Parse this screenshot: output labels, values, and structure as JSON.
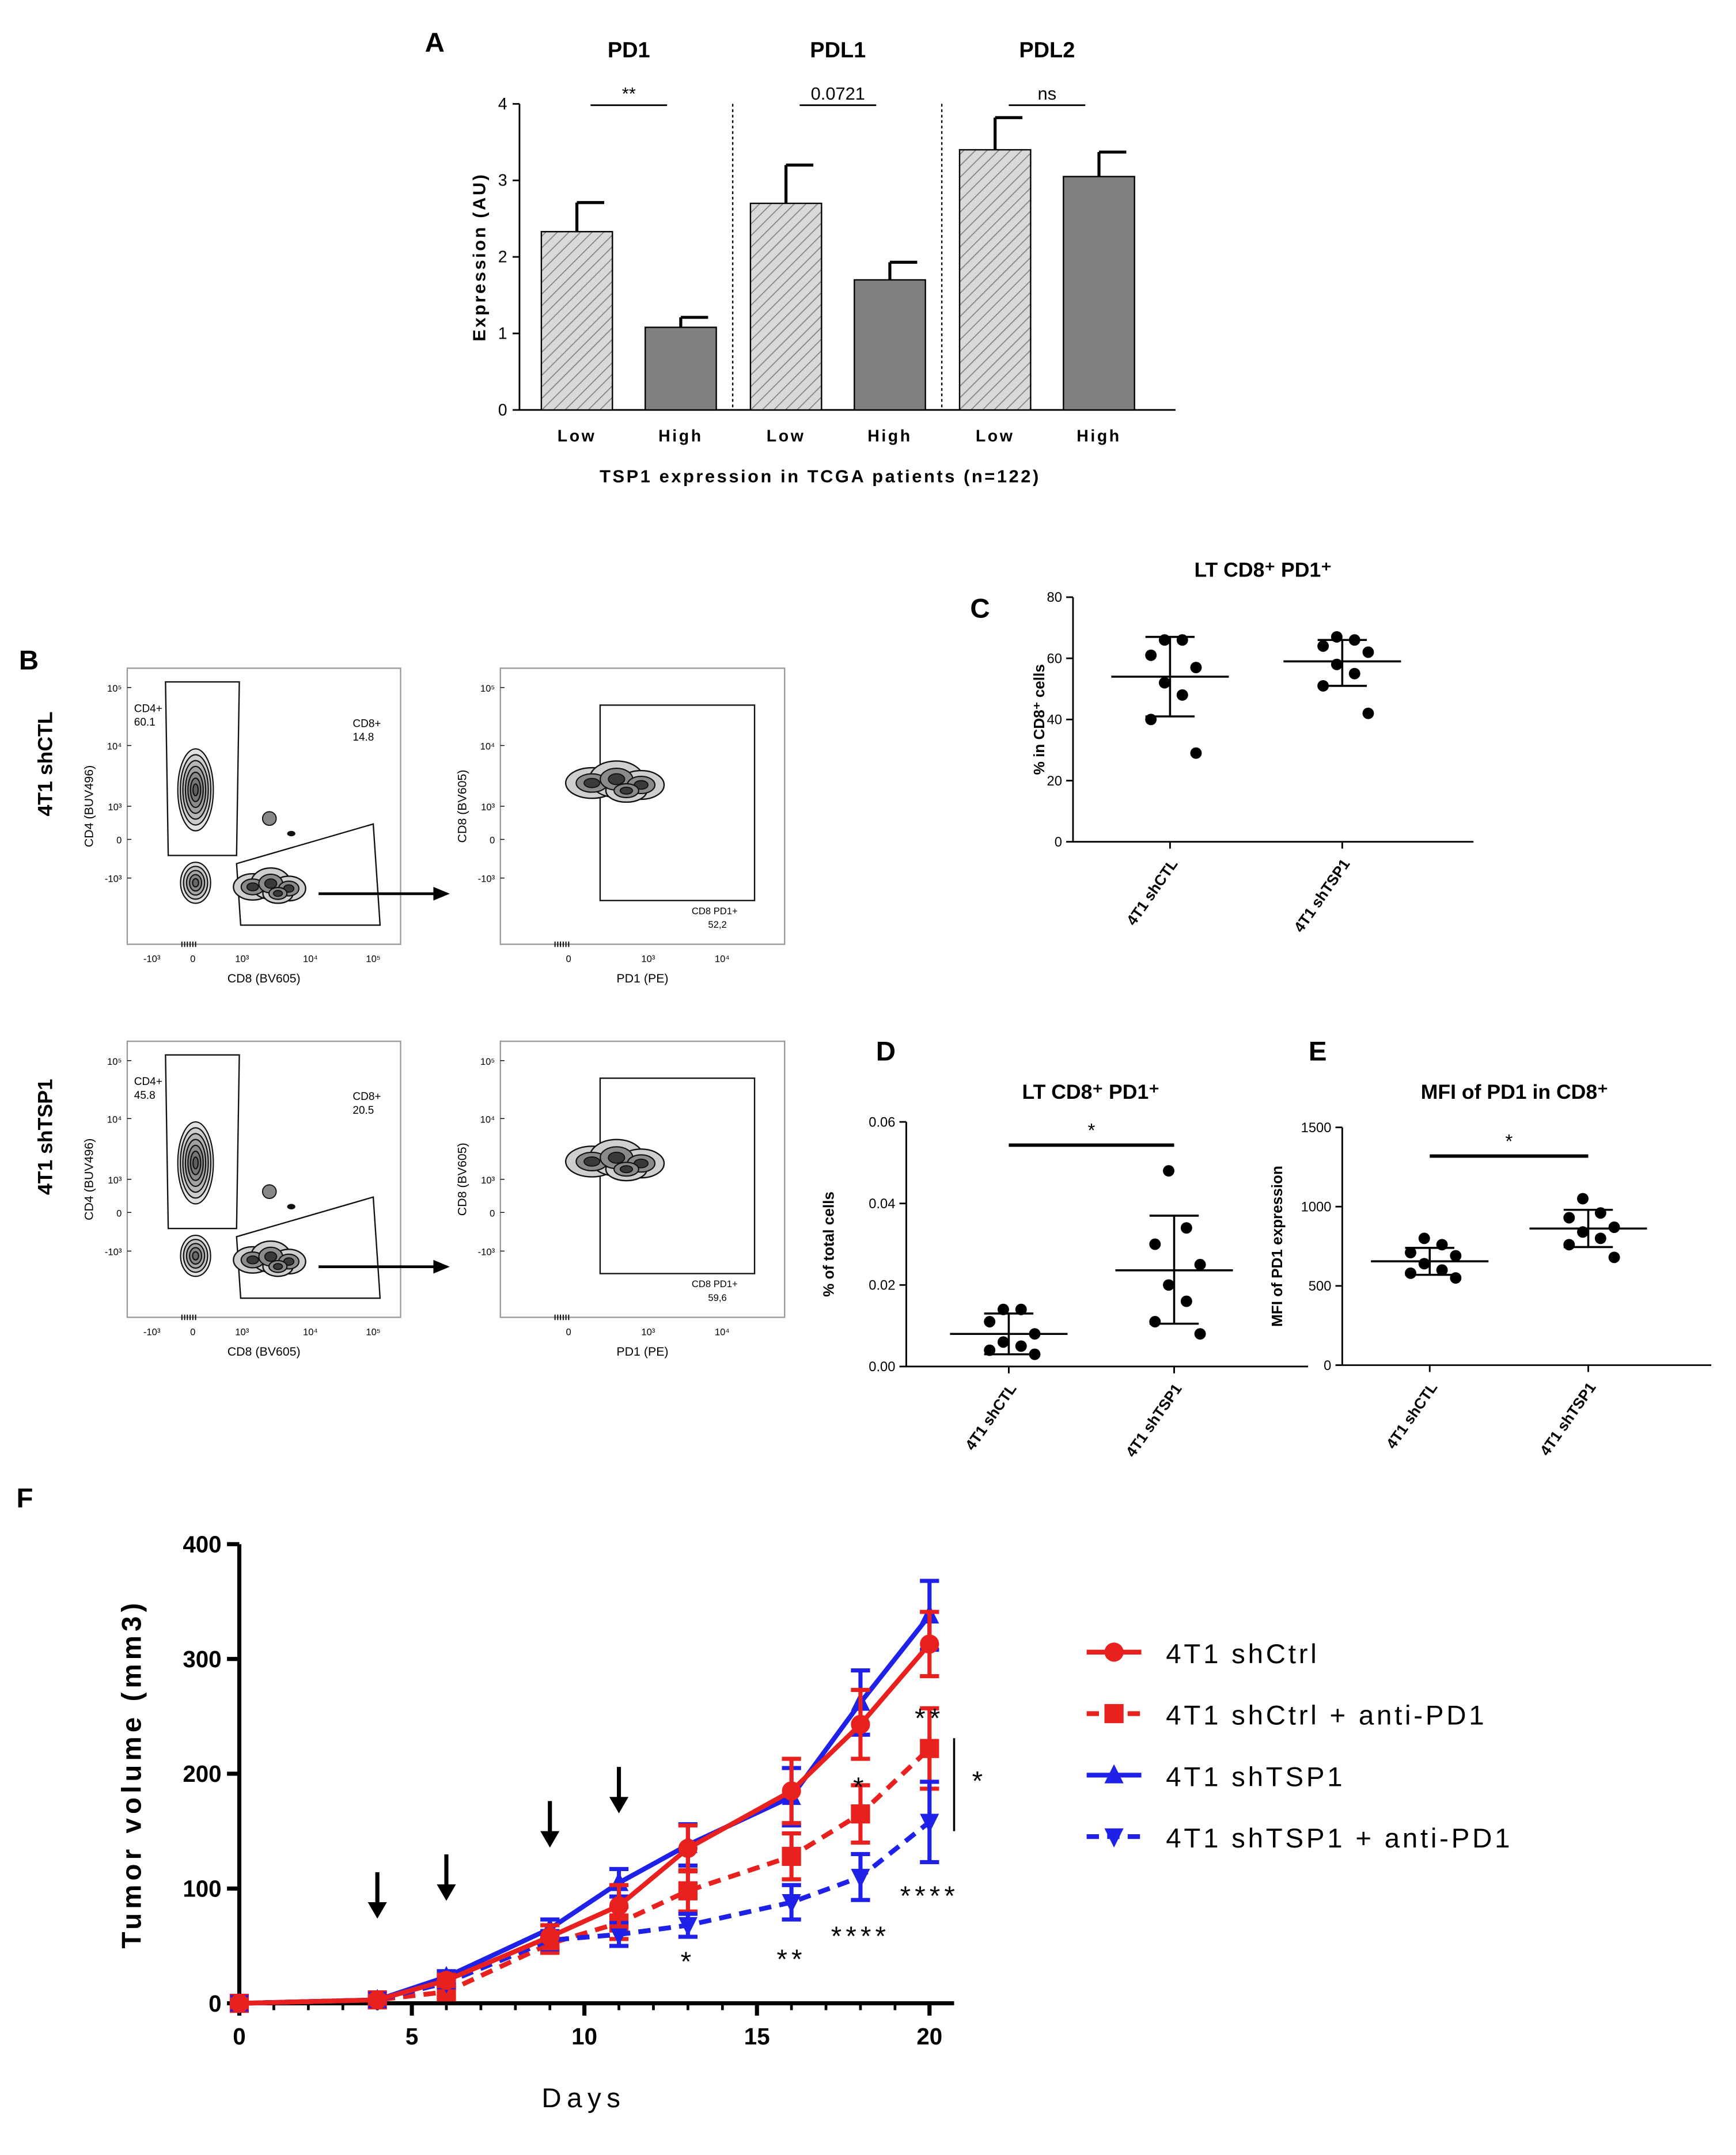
{
  "chart_data": [
    {
      "panel": "A",
      "type": "bar",
      "groups": [
        "PD1",
        "PDL1",
        "PDL2"
      ],
      "categories": [
        "Low",
        "High"
      ],
      "xlabel": "TSP1 expression in TCGA patients (n=122)",
      "ylabel": "Expression (AU)",
      "ylim": [
        0,
        4
      ],
      "yticks": [
        0,
        1,
        2,
        3,
        4
      ],
      "values": [
        [
          2.33,
          1.08
        ],
        [
          2.7,
          1.7
        ],
        [
          3.4,
          3.05
        ]
      ],
      "errors": [
        [
          0.38,
          0.13
        ],
        [
          0.5,
          0.23
        ],
        [
          0.42,
          0.32
        ]
      ],
      "significance": [
        "**",
        "0.0721",
        "ns"
      ]
    },
    {
      "panel": "C",
      "type": "scatter",
      "title": "LT CD8⁺ PD1⁺",
      "ylabel": "% in CD8⁺ cells",
      "categories": [
        "4T1 shCTL",
        "4T1 shTSP1"
      ],
      "ylim": [
        0,
        80
      ],
      "yticks": [
        0,
        20,
        40,
        60,
        80
      ],
      "points": [
        [
          66,
          66,
          61,
          57,
          52,
          48,
          40,
          29
        ],
        [
          67,
          66,
          64,
          62,
          58,
          55,
          51,
          42
        ]
      ],
      "mean": [
        54,
        59
      ],
      "sd_low": [
        41,
        51
      ],
      "sd_high": [
        67,
        66
      ]
    },
    {
      "panel": "D",
      "type": "scatter",
      "title": "LT CD8⁺ PD1⁺",
      "ylabel": "% of total cells",
      "categories": [
        "4T1 shCTL",
        "4T1 shTSP1"
      ],
      "ylim": [
        0,
        0.06
      ],
      "yticks": [
        "0.00",
        "0.02",
        "0.04",
        "0.06"
      ],
      "points": [
        [
          0.014,
          0.014,
          0.011,
          0.008,
          0.006,
          0.005,
          0.004,
          0.003
        ],
        [
          0.048,
          0.034,
          0.03,
          0.025,
          0.02,
          0.016,
          0.011,
          0.008
        ]
      ],
      "mean": [
        0.008,
        0.0236
      ],
      "sd_low": [
        0.003,
        0.0105
      ],
      "sd_high": [
        0.013,
        0.037
      ],
      "significance": "*"
    },
    {
      "panel": "E",
      "type": "scatter",
      "title": "MFI of PD1 in CD8⁺",
      "ylabel": "MFI of PD1 expression",
      "categories": [
        "4T1 shCTL",
        "4T1 shTSP1"
      ],
      "ylim": [
        0,
        1500
      ],
      "yticks": [
        0,
        500,
        1000,
        1500
      ],
      "points": [
        [
          800,
          760,
          710,
          690,
          640,
          600,
          580,
          550
        ],
        [
          1050,
          960,
          930,
          870,
          840,
          800,
          760,
          680
        ]
      ],
      "mean": [
        655,
        862
      ],
      "sd_low": [
        570,
        745
      ],
      "sd_high": [
        740,
        980
      ],
      "significance": "*"
    },
    {
      "panel": "F",
      "type": "line",
      "xlabel": "Days",
      "ylabel": "Tumor volume (mm3)",
      "xlim": [
        0,
        20
      ],
      "ylim": [
        0,
        400
      ],
      "xticks": [
        0,
        5,
        10,
        15,
        20
      ],
      "yticks": [
        0,
        100,
        200,
        300,
        400
      ],
      "x": [
        0,
        4,
        6,
        9,
        11,
        13,
        16,
        18,
        20
      ],
      "arrow_days": [
        4,
        6,
        9,
        11
      ],
      "series": [
        {
          "name": "4T1 shCtrl",
          "color": "#e8201e",
          "dashed": false,
          "marker": "circle",
          "values": [
            0,
            3,
            20,
            58,
            85,
            135,
            185,
            243,
            313
          ],
          "errors": [
            0,
            2,
            5,
            10,
            18,
            20,
            28,
            30,
            28
          ]
        },
        {
          "name": "4T1 shCtrl + anti-PD1",
          "color": "#e8201e",
          "dashed": true,
          "marker": "square",
          "values": [
            0,
            3,
            10,
            52,
            70,
            98,
            128,
            165,
            222
          ],
          "errors": [
            0,
            2,
            5,
            8,
            14,
            18,
            20,
            25,
            35
          ]
        },
        {
          "name": "4T1 shTSP1",
          "color": "#1f21e8",
          "dashed": false,
          "marker": "triangle-up",
          "values": [
            0,
            3,
            23,
            65,
            105,
            138,
            180,
            262,
            338
          ],
          "errors": [
            0,
            2,
            5,
            8,
            12,
            18,
            25,
            28,
            30
          ]
        },
        {
          "name": "4T1 shTSP1 + anti-PD1",
          "color": "#1f21e8",
          "dashed": true,
          "marker": "triangle-down",
          "values": [
            0,
            3,
            18,
            55,
            60,
            68,
            88,
            110,
            158
          ],
          "errors": [
            0,
            2,
            4,
            8,
            10,
            10,
            15,
            20,
            35
          ]
        }
      ],
      "annotations": [
        {
          "text": "*",
          "x": 13,
          "y": 38
        },
        {
          "text": "**",
          "x": 16,
          "y": 40
        },
        {
          "text": "****",
          "x": 18,
          "y": 60
        },
        {
          "text": "****",
          "x": 20,
          "y": 95
        },
        {
          "text": "*",
          "x": 18,
          "y": 190
        },
        {
          "text": "**",
          "x": 20,
          "y": 250
        }
      ],
      "bracket_label": "*"
    }
  ],
  "panel_letters": {
    "A": "A",
    "B": "B",
    "C": "C",
    "D": "D",
    "E": "E",
    "F": "F"
  },
  "flow": {
    "rows": [
      {
        "label": "4T1 shCTL",
        "cd4": "CD4+",
        "cd4_pct": "60.1",
        "cd8": "CD8+",
        "cd8_pct": "14.8",
        "pd1_gate": "CD8 PD1+",
        "pd1_pct": "52,2"
      },
      {
        "label": "4T1 shTSP1",
        "cd4": "CD4+",
        "cd4_pct": "45.8",
        "cd8": "CD8+",
        "cd8_pct": "20.5",
        "pd1_gate": "CD8 PD1+",
        "pd1_pct": "59,6"
      }
    ],
    "left_x_label": "CD8 (BV605)",
    "left_y_label": "CD4 (BUV496)",
    "right_x_label": "PD1 (PE)",
    "right_y_label": "CD8 (BV605)",
    "y_ticks": [
      "10⁵",
      "10⁴",
      "10³",
      "0",
      "-10³"
    ],
    "left_x_ticks": [
      "-10³",
      "0",
      "10³",
      "10⁴",
      "10⁵"
    ],
    "right_x_ticks": [
      "0",
      "10³",
      "10⁴"
    ]
  }
}
